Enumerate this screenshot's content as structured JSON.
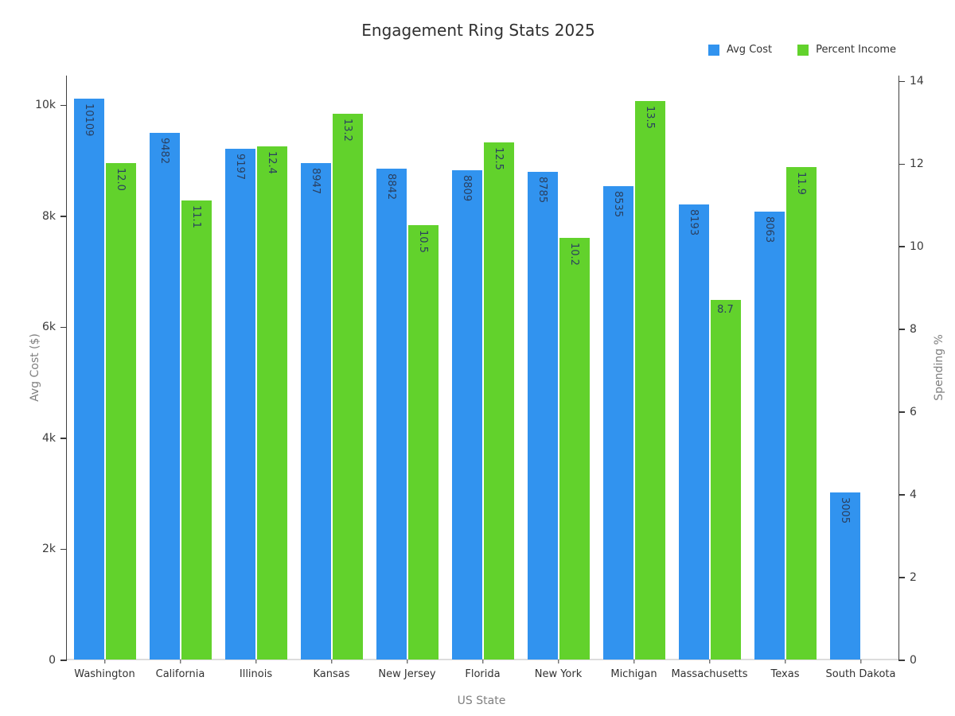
{
  "title": "Engagement Ring Stats 2025",
  "legend": [
    {
      "label": "Avg Cost",
      "color": "#3193ef"
    },
    {
      "label": "Percent Income",
      "color": "#62d22c"
    }
  ],
  "axes": {
    "x_label": "US State",
    "y_left_label": "Avg Cost ($)",
    "y_right_label": "Spending %"
  },
  "colors": {
    "avg_cost_bar": "#3193ef",
    "percent_income_bar": "#62d22c",
    "bar_value_text": "#2a3f5f"
  },
  "chart_data": {
    "type": "bar",
    "title": "Engagement Ring Stats 2025",
    "xlabel": "US State",
    "ylabel_left": "Avg Cost ($)",
    "ylabel_right": "Spending %",
    "legend_position": "top-right",
    "grid": false,
    "categories": [
      "Washington",
      "California",
      "Illinois",
      "Kansas",
      "New Jersey",
      "Florida",
      "New York",
      "Michigan",
      "Massachusetts",
      "Texas",
      "South Dakota"
    ],
    "series": [
      {
        "name": "Avg Cost",
        "axis": "left",
        "color": "#3193ef",
        "values": [
          10109,
          9482,
          9197,
          8947,
          8842,
          8809,
          8785,
          8535,
          8193,
          8063,
          3005
        ],
        "labels": [
          "10109",
          "9482",
          "9197",
          "8947",
          "8842",
          "8809",
          "8785",
          "8535",
          "8193",
          "8063",
          "3005"
        ]
      },
      {
        "name": "Percent Income",
        "axis": "right",
        "color": "#62d22c",
        "values": [
          12.0,
          11.1,
          12.4,
          13.2,
          10.5,
          12.5,
          10.2,
          13.5,
          8.7,
          11.9,
          null
        ],
        "labels": [
          "12.0",
          "11.1",
          "12.4",
          "13.2",
          "10.5",
          "12.5",
          "10.2",
          "13.5",
          "8.7",
          "11.9",
          null
        ]
      }
    ],
    "y_left": {
      "tick_labels": [
        "0",
        "2k",
        "4k",
        "6k",
        "8k",
        "10k"
      ],
      "tick_values": [
        0,
        2000,
        4000,
        6000,
        8000,
        10000
      ],
      "axis_min": 0,
      "axis_max": 10520
    },
    "y_right": {
      "tick_labels": [
        "0",
        "2",
        "4",
        "6",
        "8",
        "10",
        "12",
        "14"
      ],
      "tick_values": [
        0,
        2,
        4,
        6,
        8,
        10,
        12,
        14
      ],
      "axis_min": 0,
      "axis_max": 14.12
    }
  }
}
